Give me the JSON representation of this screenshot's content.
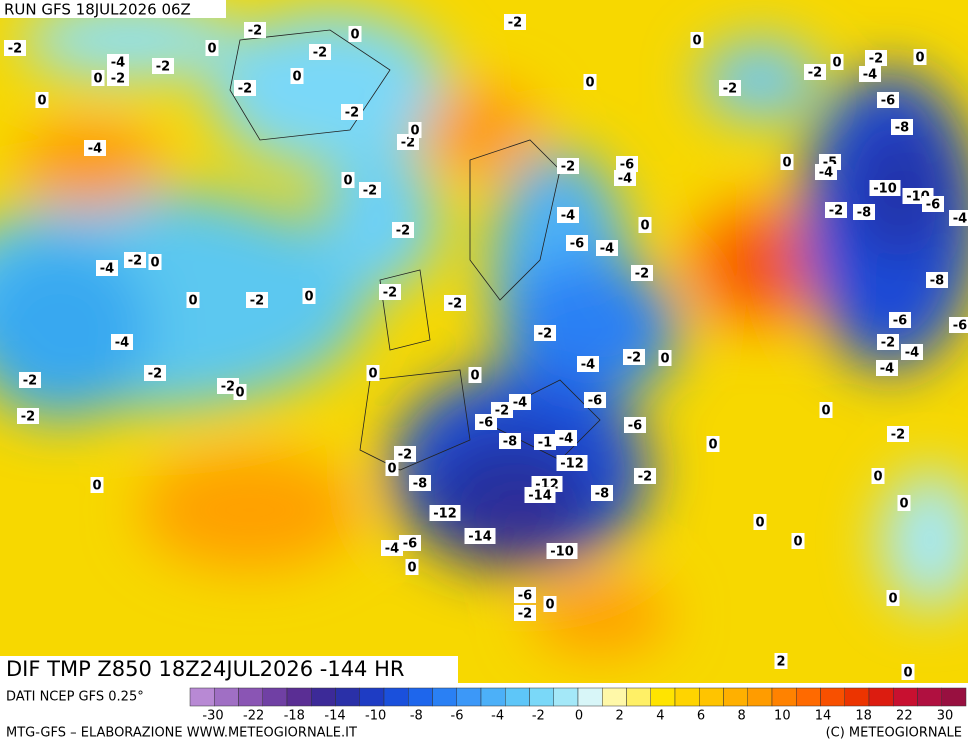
{
  "header": {
    "run": "RUN GFS 18JUL2026 06Z"
  },
  "map": {
    "field_title": "DIF TMP Z850 18Z24JUL2026 -144 HR",
    "contour_labels": [
      -2,
      -4,
      0,
      -2,
      -2,
      0,
      -2,
      -2,
      0,
      -2,
      0,
      -2,
      0,
      -4,
      -2,
      -2,
      0,
      0,
      -2,
      -2,
      -4,
      -2,
      0,
      0,
      -2,
      0,
      -2,
      -2,
      -4,
      -2,
      -2,
      -2,
      -2,
      0,
      0,
      0,
      0,
      -2,
      -2,
      -6,
      -4,
      -4,
      -6,
      -4,
      0,
      -2,
      -4,
      -2,
      0,
      -6,
      -6,
      -2,
      -4,
      -6,
      -8,
      -1,
      -4,
      -12,
      -12,
      -14,
      -8,
      -8,
      -12,
      -14,
      -10,
      -6,
      -4,
      0,
      -6,
      -2,
      0,
      -2,
      0,
      -2,
      0,
      0,
      -2,
      0,
      0,
      0,
      0,
      0,
      0,
      2,
      0,
      -2,
      -2,
      0,
      -2,
      -4,
      0,
      -6,
      -8,
      0,
      -5,
      -4,
      -10,
      -10,
      -2,
      -8,
      -6,
      -4,
      -8,
      -6,
      -6,
      -2,
      -4,
      -4,
      0
    ]
  },
  "footer": {
    "source": "DATI NCEP GFS 0.25°",
    "credit": "MTG-GFS – ELABORAZIONE WWW.METEOGIORNALE.IT",
    "copyright": "(C) METEOGIORNALE",
    "colorbar": {
      "colors": [
        "#b889d4",
        "#a06fc4",
        "#8a55b4",
        "#7040a4",
        "#5a2e94",
        "#3c2a98",
        "#2a30a8",
        "#1e3cc4",
        "#1a50dc",
        "#1e66ec",
        "#2a80f4",
        "#3c98f8",
        "#4cb0f8",
        "#5ec6f8",
        "#7ad8f8",
        "#a4e8f8",
        "#d8f6f8",
        "#fff8a8",
        "#fff066",
        "#ffe400",
        "#ffd400",
        "#ffc400",
        "#ffb000",
        "#ff9c00",
        "#ff8200",
        "#ff6a00",
        "#f85000",
        "#ec3400",
        "#dc1c10",
        "#c81030",
        "#b01040",
        "#981040"
      ],
      "ticks": [
        -30,
        -22,
        -18,
        -14,
        -10,
        -8,
        -6,
        -4,
        -2,
        0,
        2,
        4,
        6,
        8,
        10,
        14,
        18,
        22,
        30
      ]
    }
  }
}
